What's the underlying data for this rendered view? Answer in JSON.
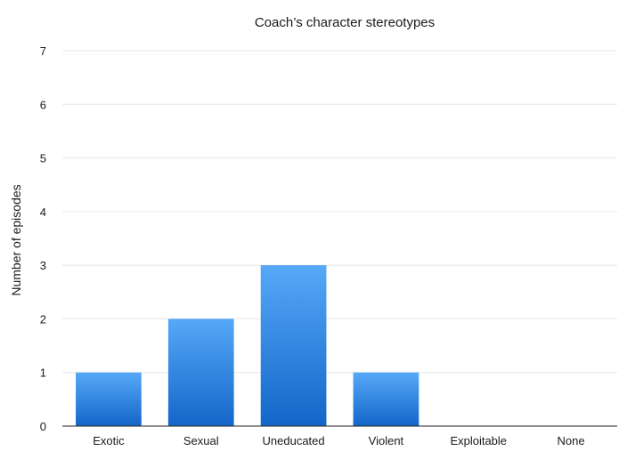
{
  "chart_data": {
    "type": "bar",
    "title": "Coach’s character stereotypes",
    "xlabel": "",
    "ylabel": "Number of episodes",
    "categories": [
      "Exotic",
      "Sexual",
      "Uneducated",
      "Violent",
      "Exploitable",
      "None"
    ],
    "values": [
      1,
      2,
      3,
      1,
      0,
      0
    ],
    "ylim": [
      0,
      7
    ],
    "yticks": [
      "0",
      "1",
      "2",
      "3",
      "4",
      "5",
      "6",
      "7"
    ],
    "grid": true,
    "legend": "none",
    "colors": {
      "bar_top": "#56a8f8",
      "bar_bottom": "#1366c8"
    }
  }
}
